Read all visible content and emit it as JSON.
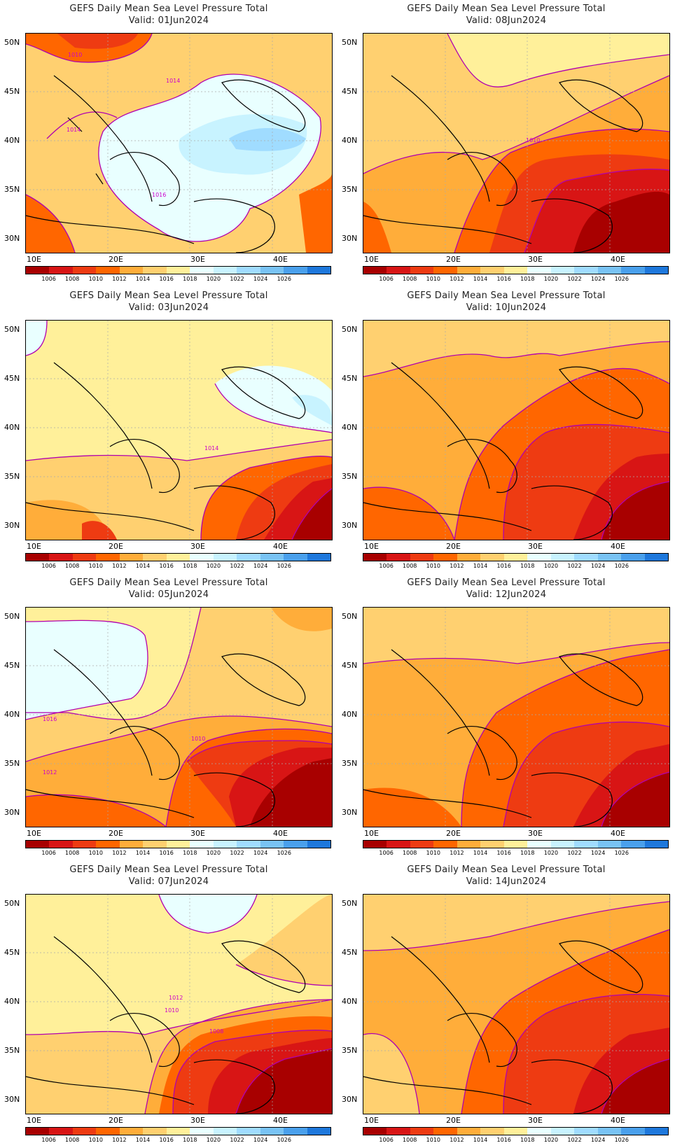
{
  "title": "GEFS Daily Mean Sea Level Pressure Total",
  "lat_labels": [
    "50N",
    "45N",
    "40N",
    "35N",
    "30N"
  ],
  "lon_labels": [
    "10E",
    "20E",
    "30E",
    "40E"
  ],
  "colorbar": {
    "labels": [
      "1006",
      "1008",
      "1010",
      "1012",
      "1014",
      "1016",
      "1018",
      "1020",
      "1022",
      "1024",
      "1026"
    ],
    "colors": [
      "#a80000",
      "#d81515",
      "#ee3b12",
      "#ff6600",
      "#ffad3a",
      "#ffd070",
      "#fff09a",
      "#e9ffff",
      "#c8f3ff",
      "#a0dcff",
      "#79c3f4",
      "#4aa0ec",
      "#1e78dc"
    ]
  },
  "panels": [
    {
      "valid": "Valid: 01Jun2024",
      "contour_labels": [
        "1010",
        "1014",
        "1014",
        "1016"
      ]
    },
    {
      "valid": "Valid: 08Jun2024",
      "contour_labels": [
        "1010"
      ]
    },
    {
      "valid": "Valid: 03Jun2024",
      "contour_labels": [
        "1014"
      ]
    },
    {
      "valid": "Valid: 10Jun2024",
      "contour_labels": []
    },
    {
      "valid": "Valid: 05Jun2024",
      "contour_labels": [
        "1016",
        "1010",
        "1012"
      ]
    },
    {
      "valid": "Valid: 12Jun2024",
      "contour_labels": []
    },
    {
      "valid": "Valid: 07Jun2024",
      "contour_labels": [
        "1012",
        "1010",
        "1008"
      ]
    },
    {
      "valid": "Valid: 14Jun2024",
      "contour_labels": []
    }
  ]
}
